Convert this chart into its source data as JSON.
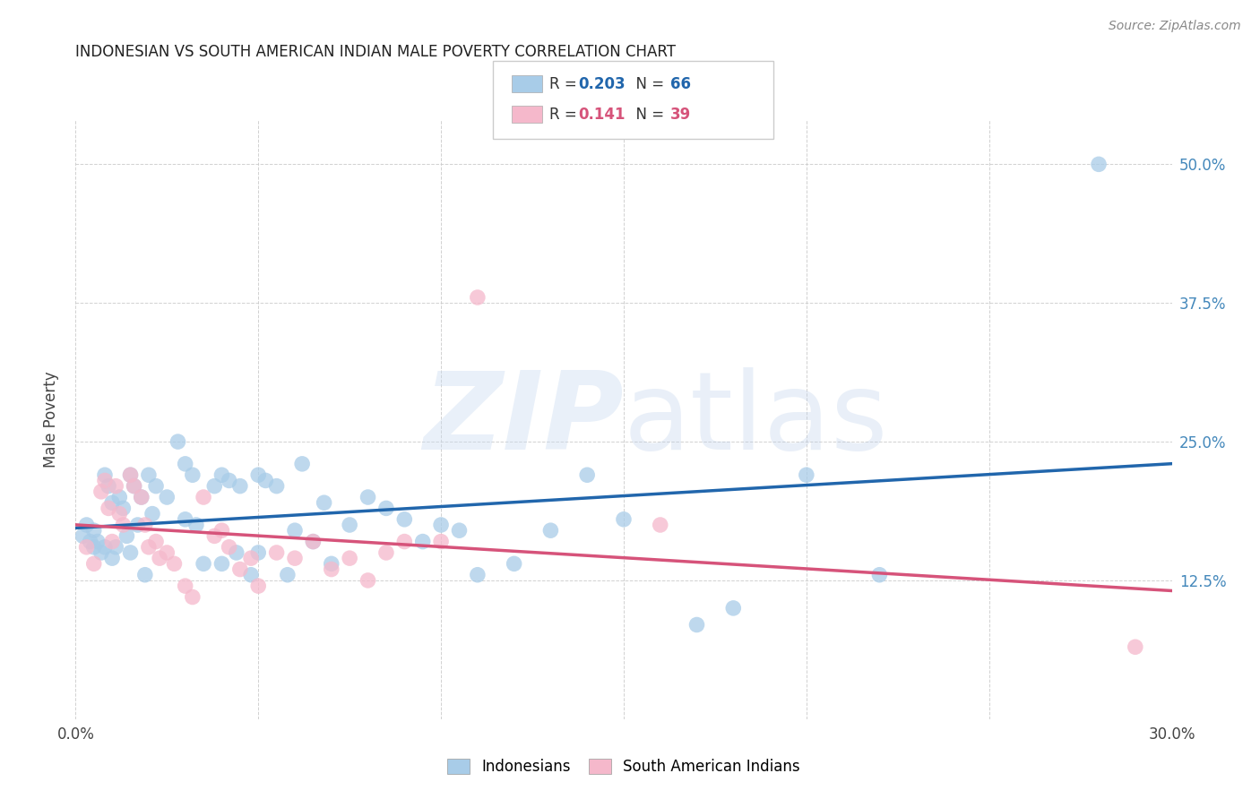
{
  "title": "INDONESIAN VS SOUTH AMERICAN INDIAN MALE POVERTY CORRELATION CHART",
  "source": "Source: ZipAtlas.com",
  "ylabel": "Male Poverty",
  "xlim": [
    0.0,
    0.3
  ],
  "ylim": [
    0.0,
    0.54
  ],
  "yticks": [
    0.0,
    0.125,
    0.25,
    0.375,
    0.5
  ],
  "ytick_labels": [
    "",
    "12.5%",
    "25.0%",
    "37.5%",
    "50.0%"
  ],
  "xticks": [
    0.0,
    0.05,
    0.1,
    0.15,
    0.2,
    0.25,
    0.3
  ],
  "xtick_labels": [
    "0.0%",
    "",
    "",
    "",
    "",
    "",
    "30.0%"
  ],
  "r_blue": "0.203",
  "n_blue": "66",
  "r_pink": "0.141",
  "n_pink": "39",
  "blue_scatter_color": "#a8cce8",
  "pink_scatter_color": "#f5b8cb",
  "line_blue_color": "#2166ac",
  "line_pink_color": "#d6537a",
  "right_tick_color": "#4488bb",
  "indonesian_x": [
    0.002,
    0.003,
    0.004,
    0.005,
    0.005,
    0.006,
    0.007,
    0.008,
    0.008,
    0.009,
    0.01,
    0.01,
    0.011,
    0.012,
    0.013,
    0.014,
    0.015,
    0.015,
    0.016,
    0.017,
    0.018,
    0.019,
    0.02,
    0.021,
    0.022,
    0.025,
    0.028,
    0.03,
    0.03,
    0.032,
    0.033,
    0.035,
    0.038,
    0.04,
    0.04,
    0.042,
    0.044,
    0.045,
    0.048,
    0.05,
    0.05,
    0.052,
    0.055,
    0.058,
    0.06,
    0.062,
    0.065,
    0.068,
    0.07,
    0.075,
    0.08,
    0.085,
    0.09,
    0.095,
    0.1,
    0.105,
    0.11,
    0.12,
    0.13,
    0.14,
    0.15,
    0.17,
    0.18,
    0.2,
    0.22,
    0.28
  ],
  "indonesian_y": [
    0.165,
    0.175,
    0.16,
    0.17,
    0.155,
    0.16,
    0.15,
    0.155,
    0.22,
    0.21,
    0.145,
    0.195,
    0.155,
    0.2,
    0.19,
    0.165,
    0.22,
    0.15,
    0.21,
    0.175,
    0.2,
    0.13,
    0.22,
    0.185,
    0.21,
    0.2,
    0.25,
    0.18,
    0.23,
    0.22,
    0.175,
    0.14,
    0.21,
    0.22,
    0.14,
    0.215,
    0.15,
    0.21,
    0.13,
    0.22,
    0.15,
    0.215,
    0.21,
    0.13,
    0.17,
    0.23,
    0.16,
    0.195,
    0.14,
    0.175,
    0.2,
    0.19,
    0.18,
    0.16,
    0.175,
    0.17,
    0.13,
    0.14,
    0.17,
    0.22,
    0.18,
    0.085,
    0.1,
    0.22,
    0.13,
    0.5
  ],
  "southamerican_x": [
    0.003,
    0.005,
    0.007,
    0.008,
    0.009,
    0.01,
    0.011,
    0.012,
    0.013,
    0.015,
    0.016,
    0.018,
    0.019,
    0.02,
    0.022,
    0.023,
    0.025,
    0.027,
    0.03,
    0.032,
    0.035,
    0.038,
    0.04,
    0.042,
    0.045,
    0.048,
    0.05,
    0.055,
    0.06,
    0.065,
    0.07,
    0.075,
    0.08,
    0.085,
    0.09,
    0.1,
    0.11,
    0.16,
    0.29
  ],
  "southamerican_y": [
    0.155,
    0.14,
    0.205,
    0.215,
    0.19,
    0.16,
    0.21,
    0.185,
    0.175,
    0.22,
    0.21,
    0.2,
    0.175,
    0.155,
    0.16,
    0.145,
    0.15,
    0.14,
    0.12,
    0.11,
    0.2,
    0.165,
    0.17,
    0.155,
    0.135,
    0.145,
    0.12,
    0.15,
    0.145,
    0.16,
    0.135,
    0.145,
    0.125,
    0.15,
    0.16,
    0.16,
    0.38,
    0.175,
    0.065
  ]
}
